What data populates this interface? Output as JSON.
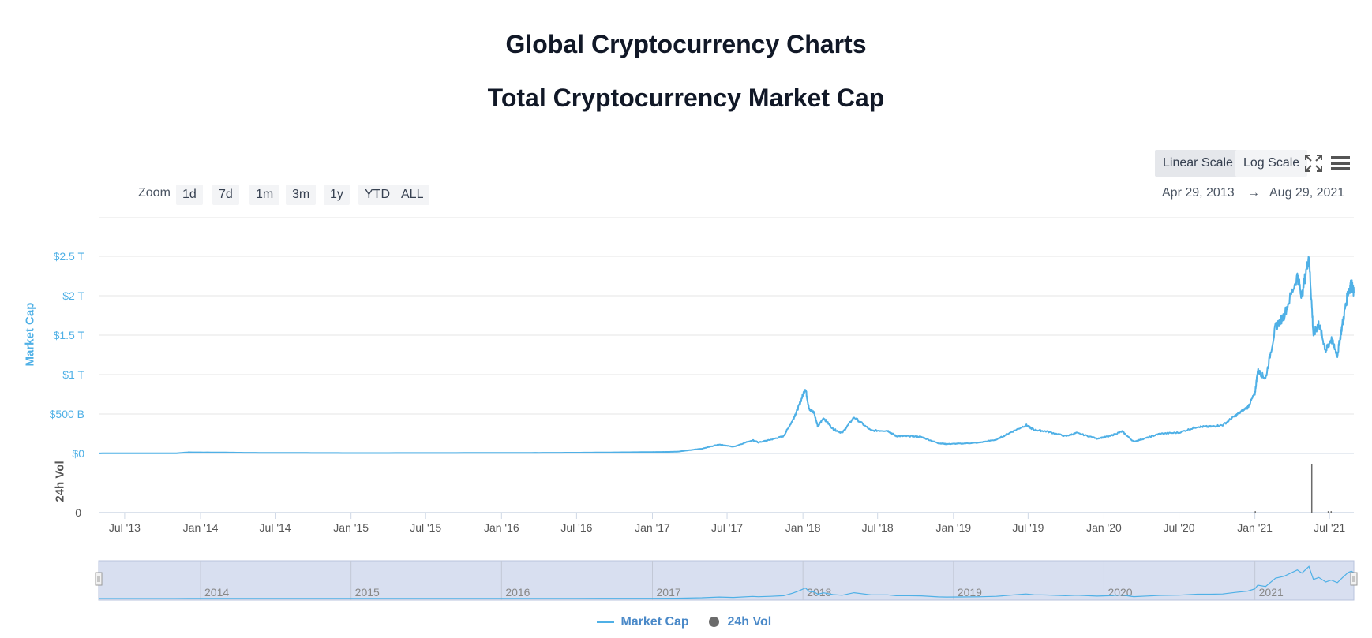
{
  "header": {
    "page_title": "Global Cryptocurrency Charts",
    "chart_title": "Total Cryptocurrency Market Cap"
  },
  "controls": {
    "scale_buttons": [
      "Linear Scale",
      "Log Scale"
    ],
    "active_scale": "Linear Scale",
    "fullscreen_icon": "fullscreen-icon",
    "menu_icon": "hamburger-menu-icon",
    "zoom_label": "Zoom",
    "zoom_buttons": [
      "1d",
      "7d",
      "1m",
      "3m",
      "1y",
      "YTD",
      "ALL"
    ],
    "range_from": "Apr 29, 2013",
    "range_arrow": "→",
    "range_to": "Aug 29, 2021"
  },
  "colors": {
    "market_cap": "#4fb0e6",
    "volume": "#6b6b6b",
    "axis_label_blue": "#4fb0e6",
    "navigator_fill": "#d8dff0",
    "legend_text": "#4a89c8"
  },
  "chart_data": {
    "type": "line",
    "title": "Total Cryptocurrency Market Cap",
    "y_axis_title": "Market Cap",
    "y_ticks": [
      "$0",
      "$500 B",
      "$1 T",
      "$1.5 T",
      "$2 T",
      "$2.5 T"
    ],
    "y_tick_values": [
      0,
      500,
      1000,
      1500,
      2000,
      2500
    ],
    "y_units": "billion USD",
    "ylim": [
      0,
      2750
    ],
    "x_range": [
      "2013-04-29",
      "2021-08-29"
    ],
    "x_ticks": [
      "Jul '13",
      "Jan '14",
      "Jul '14",
      "Jan '15",
      "Jul '15",
      "Jan '16",
      "Jul '16",
      "Jan '17",
      "Jul '17",
      "Jan '18",
      "Jul '18",
      "Jan '19",
      "Jul '19",
      "Jan '20",
      "Jul '20",
      "Jan '21",
      "Jul '21"
    ],
    "x_tick_dates": [
      "2013-07-01",
      "2014-01-01",
      "2014-07-01",
      "2015-01-01",
      "2015-07-01",
      "2016-01-01",
      "2016-07-01",
      "2017-01-01",
      "2017-07-01",
      "2018-01-01",
      "2018-07-01",
      "2019-01-01",
      "2019-07-01",
      "2020-01-01",
      "2020-07-01",
      "2021-01-01",
      "2021-07-01"
    ],
    "grid": true,
    "series": [
      {
        "name": "Market Cap",
        "x": [
          "2013-04-29",
          "2013-11-01",
          "2013-12-04",
          "2014-06-01",
          "2015-01-01",
          "2016-01-01",
          "2016-07-01",
          "2017-01-01",
          "2017-03-01",
          "2017-05-01",
          "2017-06-12",
          "2017-07-16",
          "2017-09-01",
          "2017-09-15",
          "2017-10-15",
          "2017-11-15",
          "2017-12-07",
          "2017-12-22",
          "2018-01-07",
          "2018-01-16",
          "2018-01-28",
          "2018-02-06",
          "2018-02-20",
          "2018-03-15",
          "2018-04-06",
          "2018-05-05",
          "2018-06-15",
          "2018-07-25",
          "2018-08-15",
          "2018-09-15",
          "2018-10-15",
          "2018-11-25",
          "2018-12-15",
          "2019-01-15",
          "2019-03-01",
          "2019-04-15",
          "2019-05-15",
          "2019-06-26",
          "2019-07-15",
          "2019-08-15",
          "2019-09-30",
          "2019-10-27",
          "2019-12-15",
          "2020-01-15",
          "2020-02-14",
          "2020-03-13",
          "2020-04-15",
          "2020-05-15",
          "2020-07-01",
          "2020-08-15",
          "2020-09-15",
          "2020-10-15",
          "2020-11-15",
          "2020-12-15",
          "2021-01-01",
          "2021-01-08",
          "2021-01-27",
          "2021-02-20",
          "2021-03-13",
          "2021-04-14",
          "2021-04-25",
          "2021-05-12",
          "2021-05-23",
          "2021-06-05",
          "2021-06-22",
          "2021-07-05",
          "2021-07-20",
          "2021-08-01",
          "2021-08-15",
          "2021-08-23",
          "2021-08-29"
        ],
        "values": [
          1.5,
          2,
          15,
          8,
          5,
          7,
          10,
          18,
          22,
          60,
          115,
          85,
          170,
          140,
          175,
          220,
          420,
          600,
          830,
          560,
          520,
          340,
          450,
          310,
          260,
          460,
          290,
          290,
          220,
          220,
          210,
          130,
          120,
          125,
          135,
          175,
          255,
          360,
          300,
          280,
          220,
          260,
          190,
          220,
          280,
          150,
          200,
          250,
          265,
          340,
          340,
          360,
          480,
          590,
          760,
          1050,
          950,
          1600,
          1750,
          2250,
          2000,
          2520,
          1500,
          1650,
          1300,
          1450,
          1250,
          1630,
          2050,
          2150,
          2030
        ]
      },
      {
        "name": "24h Vol",
        "x": [
          "2021-01-02",
          "2021-05-19",
          "2021-06-28",
          "2021-07-05"
        ],
        "values": [
          3,
          100,
          3,
          3
        ]
      }
    ],
    "volume_axis": {
      "title": "24h Vol",
      "tick_labels": [
        "0"
      ]
    },
    "navigator": {
      "year_labels": [
        "2014",
        "2015",
        "2016",
        "2017",
        "2018",
        "2019",
        "2020",
        "2021"
      ]
    },
    "legend": {
      "placement": "bottom-center",
      "items": [
        "Market Cap",
        "24h Vol"
      ]
    }
  }
}
